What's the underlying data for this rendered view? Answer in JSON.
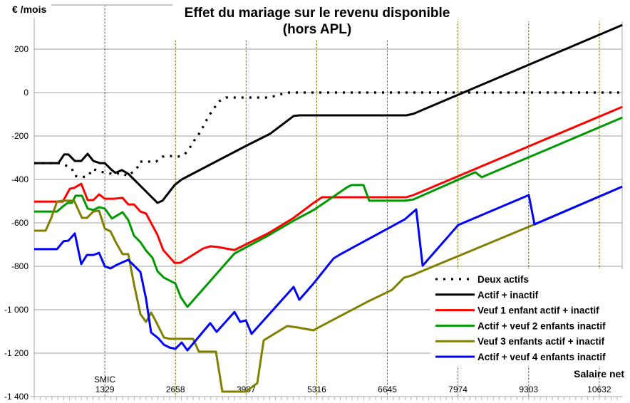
{
  "chart_data": {
    "type": "line",
    "title": "Effet du mariage sur le revenu disponible",
    "subtitle": "(hors APL)",
    "ylabel": "€ /mois",
    "xlabel": "Salaire net",
    "x_marker_label": "SMIC",
    "xlim": [
      0,
      11064
    ],
    "ylim": [
      -1400,
      330
    ],
    "yticks": [
      200,
      0,
      -200,
      -400,
      -600,
      -800,
      -1000,
      -1200,
      -1400
    ],
    "ytick_labels": [
      "200",
      "0",
      "-200",
      "-400",
      "-600",
      "-800",
      "-1 000",
      "-1 200",
      "-1 400"
    ],
    "xticks": [
      1329,
      2658,
      3987,
      5316,
      6645,
      7974,
      9303,
      10632
    ],
    "xtick_labels": [
      "1329",
      "2658",
      "3987",
      "5316",
      "6645",
      "7974",
      "9303",
      "10632"
    ],
    "grid": true,
    "legend_position": "bottom-right",
    "series": [
      {
        "name": "Deux actifs",
        "color": "#000000",
        "style": "dotted",
        "x": [
          0,
          456,
          536,
          711,
          764,
          898,
          1019,
          1100,
          1234,
          1381,
          1515,
          1609,
          1770,
          1877,
          1944,
          1985,
          2132,
          2293,
          2414,
          2561,
          2709,
          2830,
          2923,
          3004,
          3084,
          3165,
          3232,
          3312,
          3393,
          3487,
          3607,
          3782,
          3983,
          4385,
          4519,
          4653,
          4801,
          11064
        ],
        "y": [
          -325,
          -325,
          -328,
          -351,
          -384,
          -390,
          -384,
          -351,
          -364,
          -370,
          -377,
          -370,
          -384,
          -361,
          -344,
          -318,
          -318,
          -318,
          -295,
          -292,
          -295,
          -285,
          -256,
          -223,
          -197,
          -164,
          -131,
          -98,
          -69,
          -39,
          -23,
          -23,
          -23,
          -23,
          -16,
          -7,
          0,
          0
        ]
      },
      {
        "name": "Actif + inactif",
        "color": "#000000",
        "style": "solid",
        "x": [
          0,
          456,
          563,
          644,
          764,
          885,
          1006,
          1113,
          1234,
          1328,
          1462,
          1529,
          1650,
          1770,
          2320,
          2414,
          2642,
          2776,
          3983,
          4439,
          4881,
          4989,
          7000,
          7134,
          11064
        ],
        "y": [
          -325,
          -325,
          -285,
          -285,
          -315,
          -315,
          -282,
          -315,
          -325,
          -325,
          -357,
          -370,
          -357,
          -374,
          -508,
          -498,
          -426,
          -400,
          -246,
          -190,
          -108,
          -105,
          -105,
          -98,
          311
        ]
      },
      {
        "name": "Veuf 1 enfant actif + inactif",
        "color": "#ff0000",
        "style": "solid",
        "x": [
          0,
          536,
          670,
          751,
          885,
          1006,
          1113,
          1220,
          1328,
          1502,
          1663,
          1770,
          1877,
          1998,
          2105,
          2320,
          2427,
          2642,
          2749,
          3178,
          3312,
          3446,
          3768,
          4398,
          4881,
          5257,
          5418,
          7000,
          7134,
          11064
        ],
        "y": [
          -502,
          -502,
          -443,
          -439,
          -420,
          -495,
          -495,
          -469,
          -489,
          -489,
          -485,
          -515,
          -515,
          -548,
          -557,
          -656,
          -725,
          -784,
          -784,
          -718,
          -708,
          -711,
          -725,
          -649,
          -577,
          -508,
          -482,
          -482,
          -472,
          -66
        ]
      },
      {
        "name": "Actif + veuf 2 enfants inactif",
        "color": "#009900",
        "style": "solid",
        "x": [
          0,
          429,
          536,
          630,
          711,
          778,
          898,
          1006,
          1113,
          1220,
          1328,
          1462,
          1663,
          1770,
          1877,
          1998,
          2105,
          2226,
          2320,
          2441,
          2655,
          2762,
          2883,
          3768,
          4398,
          4881,
          5257,
          5552,
          5887,
          5967,
          6195,
          6303,
          6973,
          7134,
          8301,
          8421,
          11064
        ],
        "y": [
          -548,
          -548,
          -525,
          -508,
          -508,
          -475,
          -475,
          -534,
          -541,
          -528,
          -534,
          -580,
          -551,
          -587,
          -659,
          -689,
          -728,
          -761,
          -823,
          -852,
          -879,
          -944,
          -987,
          -741,
          -659,
          -590,
          -541,
          -492,
          -436,
          -426,
          -426,
          -498,
          -498,
          -492,
          -367,
          -390,
          -115
        ]
      },
      {
        "name": "Veuf 3 enfants actif + inactif",
        "color": "#808000",
        "style": "solid",
        "x": [
          0,
          215,
          322,
          429,
          536,
          751,
          898,
          992,
          1113,
          1220,
          1328,
          1435,
          1542,
          1663,
          1770,
          1877,
          1998,
          2105,
          2199,
          2280,
          2441,
          2548,
          2990,
          3098,
          3420,
          3540,
          3983,
          4197,
          4318,
          4761,
          4962,
          5257,
          5324,
          6289,
          6732,
          6960,
          7094,
          9414,
          11064
        ],
        "y": [
          -636,
          -636,
          -577,
          -502,
          -498,
          -498,
          -577,
          -577,
          -548,
          -544,
          -626,
          -639,
          -692,
          -744,
          -744,
          -882,
          -1020,
          -1056,
          -1013,
          -1049,
          -1128,
          -1134,
          -1134,
          -1193,
          -1193,
          -1377,
          -1377,
          -1338,
          -1141,
          -1075,
          -1082,
          -1095,
          -1085,
          -961,
          -909,
          -852,
          -843,
          -607,
          -433
        ]
      },
      {
        "name": "Actif + veuf 4 enfants inactif",
        "color": "#0000ff",
        "style": "solid",
        "x": [
          0,
          429,
          550,
          644,
          764,
          885,
          992,
          1113,
          1220,
          1328,
          1435,
          1556,
          1770,
          1998,
          2105,
          2199,
          2333,
          2441,
          2548,
          2655,
          2776,
          2883,
          3312,
          3433,
          3768,
          3875,
          3983,
          4090,
          4881,
          4989,
          5257,
          5632,
          5766,
          6973,
          7188,
          7308,
          7979,
          9307,
          9414,
          11064
        ],
        "y": [
          -721,
          -721,
          -685,
          -682,
          -649,
          -790,
          -748,
          -748,
          -738,
          -800,
          -810,
          -793,
          -770,
          -826,
          -951,
          -1105,
          -1131,
          -1161,
          -1174,
          -1180,
          -1151,
          -1187,
          -1062,
          -1102,
          -1010,
          -1056,
          -1049,
          -1111,
          -895,
          -954,
          -879,
          -764,
          -744,
          -584,
          -538,
          -797,
          -610,
          -472,
          -607,
          -433
        ]
      }
    ]
  }
}
